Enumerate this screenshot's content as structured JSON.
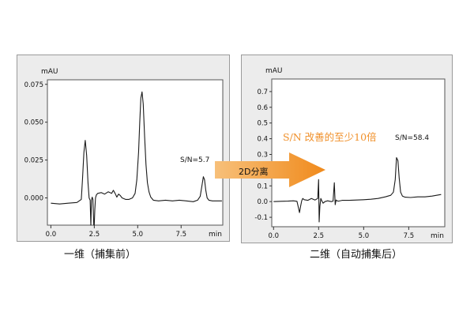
{
  "chart_data": [
    {
      "type": "line",
      "ylabel": "mAU",
      "xlabel": "min",
      "xlim": [
        -0.2,
        9.9
      ],
      "ylim": [
        -0.018,
        0.078
      ],
      "xticks": [
        "0.0",
        "2.5",
        "5.0",
        "7.5"
      ],
      "xtick_values": [
        0.0,
        2.5,
        5.0,
        7.5
      ],
      "yticks": [
        "0.075",
        "0.050",
        "0.025",
        "0.000"
      ],
      "ytick_values": [
        0.075,
        0.05,
        0.025,
        0.0
      ],
      "grid": false,
      "annotation": "S/N=5.7",
      "caption": "一维（捕集前）",
      "series": [
        {
          "x": [
            0.0,
            0.5,
            1.0,
            1.5,
            1.75,
            1.82,
            1.9,
            1.98,
            2.06,
            2.14,
            2.2,
            2.26,
            2.3,
            2.34,
            2.38,
            2.42,
            2.47,
            2.5,
            2.53,
            2.57,
            2.62,
            2.7,
            2.9,
            3.1,
            3.3,
            3.5,
            3.6,
            3.7,
            3.8,
            3.9,
            4.0,
            4.1,
            4.3,
            4.5,
            4.7,
            4.85,
            4.95,
            5.05,
            5.12,
            5.18,
            5.25,
            5.32,
            5.4,
            5.48,
            5.56,
            5.65,
            5.75,
            5.9,
            6.2,
            6.6,
            7.0,
            7.4,
            7.8,
            8.2,
            8.45,
            8.6,
            8.7,
            8.78,
            8.85,
            8.92,
            9.0,
            9.1,
            9.3,
            9.6,
            9.85
          ],
          "values": [
            -0.0035,
            -0.004,
            -0.0035,
            -0.003,
            -0.001,
            0.012,
            0.03,
            0.038,
            0.028,
            0.01,
            0.0,
            -0.0015,
            -0.018,
            -0.0015,
            0.0005,
            -0.001,
            -0.018,
            -0.018,
            -0.008,
            0.0,
            0.002,
            0.003,
            0.0035,
            0.0025,
            0.004,
            0.003,
            0.005,
            0.003,
            0.0005,
            0.0025,
            0.0015,
            0.0,
            -0.001,
            -0.001,
            0.0,
            0.003,
            0.012,
            0.03,
            0.05,
            0.066,
            0.07,
            0.062,
            0.04,
            0.022,
            0.01,
            0.004,
            0.0005,
            -0.0015,
            -0.002,
            -0.0015,
            -0.002,
            -0.0015,
            -0.002,
            -0.0025,
            -0.0015,
            0.001,
            0.008,
            0.014,
            0.012,
            0.005,
            0.0,
            -0.0015,
            -0.002,
            -0.002,
            -0.002
          ]
        }
      ]
    },
    {
      "type": "line",
      "ylabel": "mAU",
      "xlabel": "min",
      "xlim": [
        -0.1,
        9.5
      ],
      "ylim": [
        -0.16,
        0.78
      ],
      "xticks": [
        "0.0",
        "2.5",
        "5.0",
        "7.5"
      ],
      "xtick_values": [
        0.0,
        2.5,
        5.0,
        7.5
      ],
      "yticks": [
        "0.7",
        "0.6",
        "0.5",
        "0.4",
        "0.3",
        "0.2",
        "0.1",
        "0.0",
        "-0.1"
      ],
      "ytick_values": [
        0.7,
        0.6,
        0.5,
        0.4,
        0.3,
        0.2,
        0.1,
        0.0,
        -0.1
      ],
      "grid": false,
      "annotation": "S/N=58.4",
      "caption": "二维（自动捕集后）",
      "series": [
        {
          "x": [
            0.0,
            0.4,
            0.8,
            1.1,
            1.3,
            1.38,
            1.44,
            1.5,
            1.56,
            1.62,
            1.7,
            1.9,
            2.1,
            2.3,
            2.45,
            2.5,
            2.53,
            2.57,
            2.62,
            2.68,
            2.75,
            2.85,
            3.0,
            3.2,
            3.3,
            3.37,
            3.42,
            3.47,
            3.52,
            3.6,
            3.8,
            4.2,
            4.6,
            5.0,
            5.4,
            5.8,
            6.2,
            6.5,
            6.65,
            6.75,
            6.82,
            6.9,
            6.97,
            7.05,
            7.15,
            7.3,
            7.6,
            8.0,
            8.4,
            8.8,
            9.3
          ],
          "values": [
            0.0,
            0.002,
            0.003,
            0.005,
            0.002,
            -0.04,
            -0.07,
            -0.03,
            0.005,
            0.02,
            0.012,
            0.008,
            0.02,
            0.01,
            0.02,
            0.14,
            -0.13,
            -0.03,
            0.02,
            0.005,
            -0.01,
            0.0,
            0.005,
            0.0,
            0.003,
            0.12,
            -0.02,
            0.01,
            0.005,
            0.003,
            0.008,
            0.008,
            0.01,
            0.012,
            0.015,
            0.02,
            0.03,
            0.04,
            0.06,
            0.14,
            0.28,
            0.26,
            0.15,
            0.06,
            0.035,
            0.028,
            0.026,
            0.03,
            0.03,
            0.035,
            0.045
          ]
        }
      ]
    }
  ],
  "arrow_label": "2D分离",
  "improvement_text": "S/N 改善的至少10倍",
  "colors": {
    "panel_bg": "#ececec",
    "plot_bg": "#ffffff",
    "trace": "#1a1a1a",
    "arrow": "#f08a1c",
    "improvement_text": "#f0902a"
  }
}
